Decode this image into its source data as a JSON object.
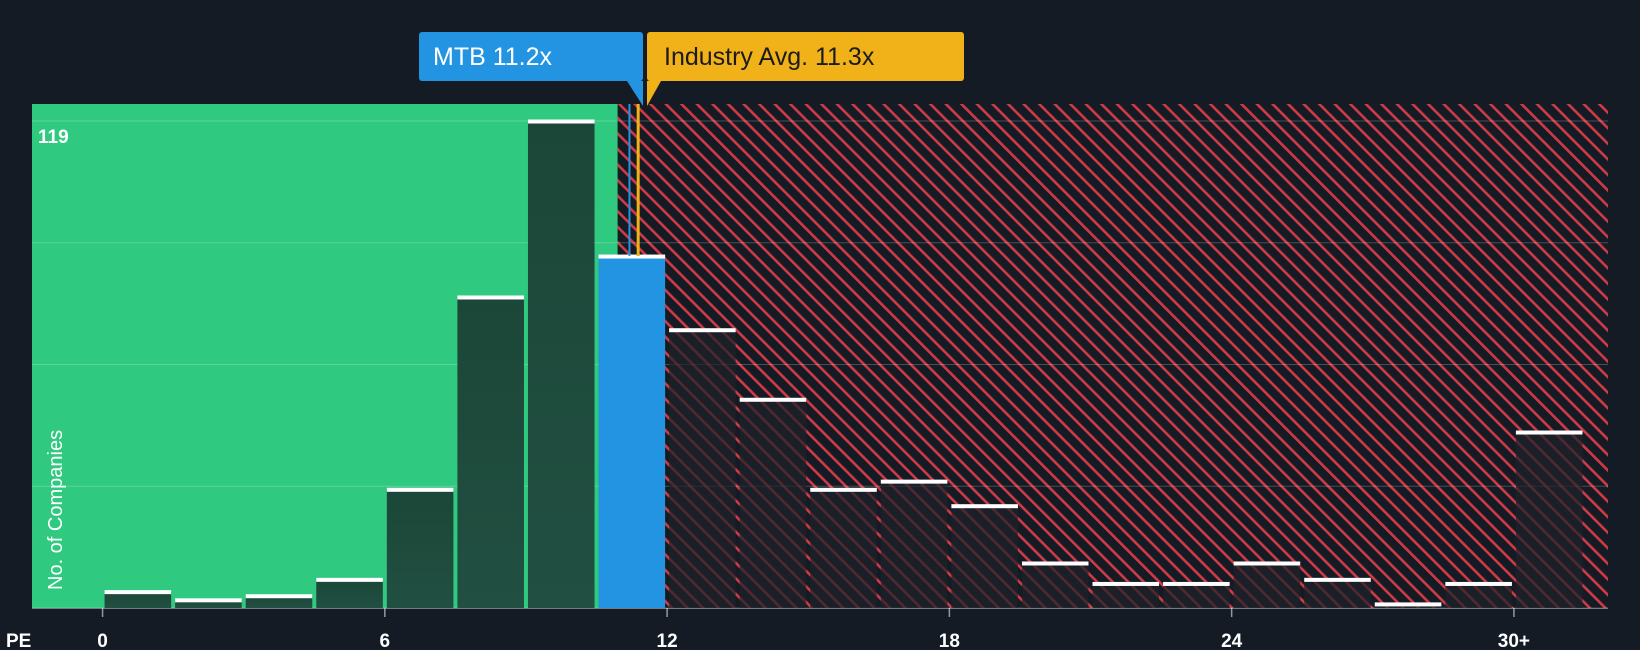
{
  "chart_data": {
    "type": "bar",
    "title": "",
    "xlabel": "PE",
    "ylabel": "No. of Companies",
    "ymax_label": "119",
    "ylim": [
      0,
      119
    ],
    "xlim": [
      -1.5,
      32
    ],
    "bin_width": 1.5,
    "x_ticks": [
      {
        "value": 0,
        "label": "0"
      },
      {
        "value": 6,
        "label": "6"
      },
      {
        "value": 12,
        "label": "12"
      },
      {
        "value": 18,
        "label": "18"
      },
      {
        "value": 24,
        "label": "24"
      },
      {
        "value": 30,
        "label": "30+"
      }
    ],
    "bins": [
      {
        "start": 0,
        "value": 4
      },
      {
        "start": 1.5,
        "value": 2
      },
      {
        "start": 3,
        "value": 3
      },
      {
        "start": 4.5,
        "value": 7
      },
      {
        "start": 6,
        "value": 29
      },
      {
        "start": 7.5,
        "value": 76
      },
      {
        "start": 9,
        "value": 119
      },
      {
        "start": 10.5,
        "value": 86,
        "highlight": true
      },
      {
        "start": 12,
        "value": 68
      },
      {
        "start": 13.5,
        "value": 51
      },
      {
        "start": 15,
        "value": 29
      },
      {
        "start": 16.5,
        "value": 31
      },
      {
        "start": 18,
        "value": 25
      },
      {
        "start": 19.5,
        "value": 11
      },
      {
        "start": 21,
        "value": 6
      },
      {
        "start": 22.5,
        "value": 6
      },
      {
        "start": 24,
        "value": 11
      },
      {
        "start": 25.5,
        "value": 7
      },
      {
        "start": 27,
        "value": 1
      },
      {
        "start": 28.5,
        "value": 6
      },
      {
        "start": 30,
        "value": 43
      }
    ],
    "company": {
      "label": "MTB 11.2x",
      "value": 11.2,
      "color": "#2394e2"
    },
    "industry": {
      "label": "Industry Avg. 11.3x",
      "value": 11.3,
      "color": "#f0b119"
    },
    "colors": {
      "background": "#151b24",
      "undervalued_zone": "#2fc980",
      "overvalued_stripe": "#d03a45",
      "bar_green_zone": "#1e4a3c",
      "bar_red_zone": "#1f2129",
      "bar_highlight": "#2394e2",
      "bar_cap": "#ffffff"
    }
  }
}
